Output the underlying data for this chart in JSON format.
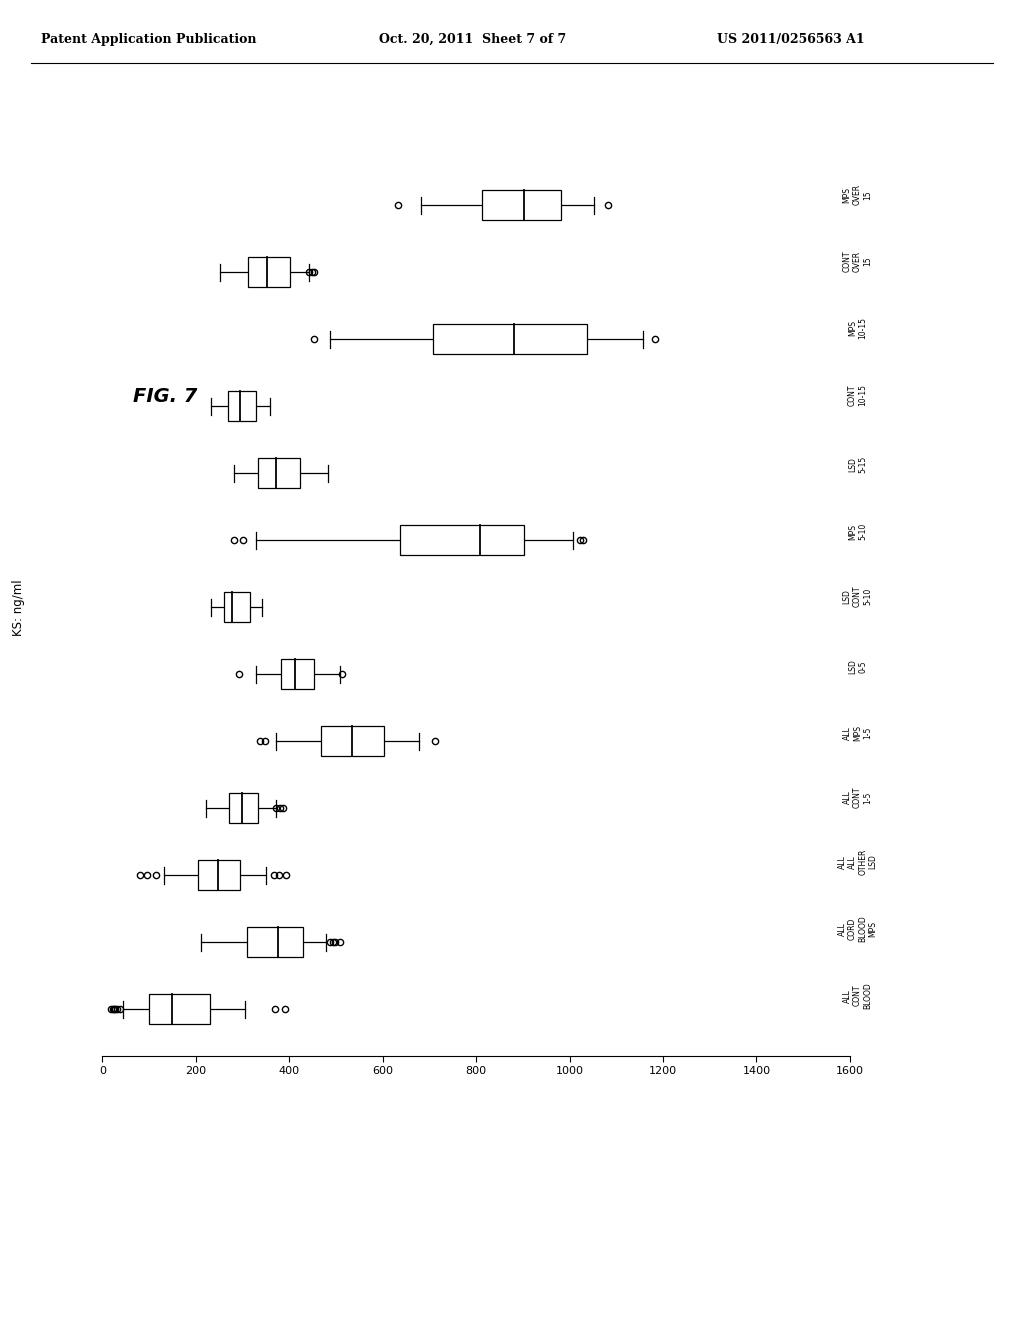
{
  "header_left": "Patent Application Publication",
  "header_mid": "Oct. 20, 2011  Sheet 7 of 7",
  "header_right": "US 2011/0256563 A1",
  "fig_label": "FIG. 7",
  "ylabel_text": "KS: ng/ml",
  "background_color": "#ffffff",
  "xlim": [
    0,
    1600
  ],
  "xticks": [
    0,
    200,
    400,
    600,
    800,
    1000,
    1200,
    1400,
    1600
  ],
  "groups": [
    {
      "label": "ALL\nCONT\nBLOOD",
      "whisker_low": 45,
      "q1": 100,
      "median": 150,
      "q3": 230,
      "whisker_high": 305,
      "outliers": [
        18,
        22,
        25,
        28,
        32,
        37,
        370,
        390
      ]
    },
    {
      "label": "ALL\nCORD\nBLOOD\nMPS",
      "whisker_low": 210,
      "q1": 310,
      "median": 375,
      "q3": 430,
      "whisker_high": 478,
      "outliers": [
        488,
        493,
        498,
        508
      ]
    },
    {
      "label": "ALL\nALL\nOTHER\nLSD",
      "whisker_low": 132,
      "q1": 205,
      "median": 248,
      "q3": 295,
      "whisker_high": 350,
      "outliers": [
        80,
        95,
        115,
        368,
        378,
        392
      ]
    },
    {
      "label": "ALL\nCONT\n1-5",
      "whisker_low": 222,
      "q1": 272,
      "median": 298,
      "q3": 332,
      "whisker_high": 372,
      "outliers": [
        372,
        380,
        386
      ]
    },
    {
      "label": "ALL\nMPS\n1-5",
      "whisker_low": 372,
      "q1": 468,
      "median": 535,
      "q3": 602,
      "whisker_high": 678,
      "outliers": [
        338,
        348,
        712
      ]
    },
    {
      "label": "LSD\n0-5",
      "whisker_low": 328,
      "q1": 382,
      "median": 412,
      "q3": 452,
      "whisker_high": 508,
      "outliers": [
        292,
        512
      ]
    },
    {
      "label": "LSD\nCONT\n5-10",
      "whisker_low": 232,
      "q1": 260,
      "median": 278,
      "q3": 315,
      "whisker_high": 342,
      "outliers": []
    },
    {
      "label": "MPS\n5-10",
      "whisker_low": 328,
      "q1": 638,
      "median": 808,
      "q3": 902,
      "whisker_high": 1008,
      "outliers": [
        282,
        302,
        1022,
        1028
      ]
    },
    {
      "label": "LSD\n5-15",
      "whisker_low": 282,
      "q1": 332,
      "median": 372,
      "q3": 422,
      "whisker_high": 482,
      "outliers": []
    },
    {
      "label": "CONT\n10-15",
      "whisker_low": 232,
      "q1": 268,
      "median": 295,
      "q3": 328,
      "whisker_high": 358,
      "outliers": []
    },
    {
      "label": "MPS\n10-15",
      "whisker_low": 488,
      "q1": 708,
      "median": 882,
      "q3": 1038,
      "whisker_high": 1158,
      "outliers": [
        452,
        1182
      ]
    },
    {
      "label": "CONT\nOVER\n15",
      "whisker_low": 252,
      "q1": 312,
      "median": 352,
      "q3": 402,
      "whisker_high": 442,
      "outliers": [
        442,
        448,
        453
      ]
    },
    {
      "label": "MPS\nOVER\n15",
      "whisker_low": 682,
      "q1": 812,
      "median": 902,
      "q3": 982,
      "whisker_high": 1052,
      "outliers": [
        632,
        1082
      ]
    }
  ]
}
